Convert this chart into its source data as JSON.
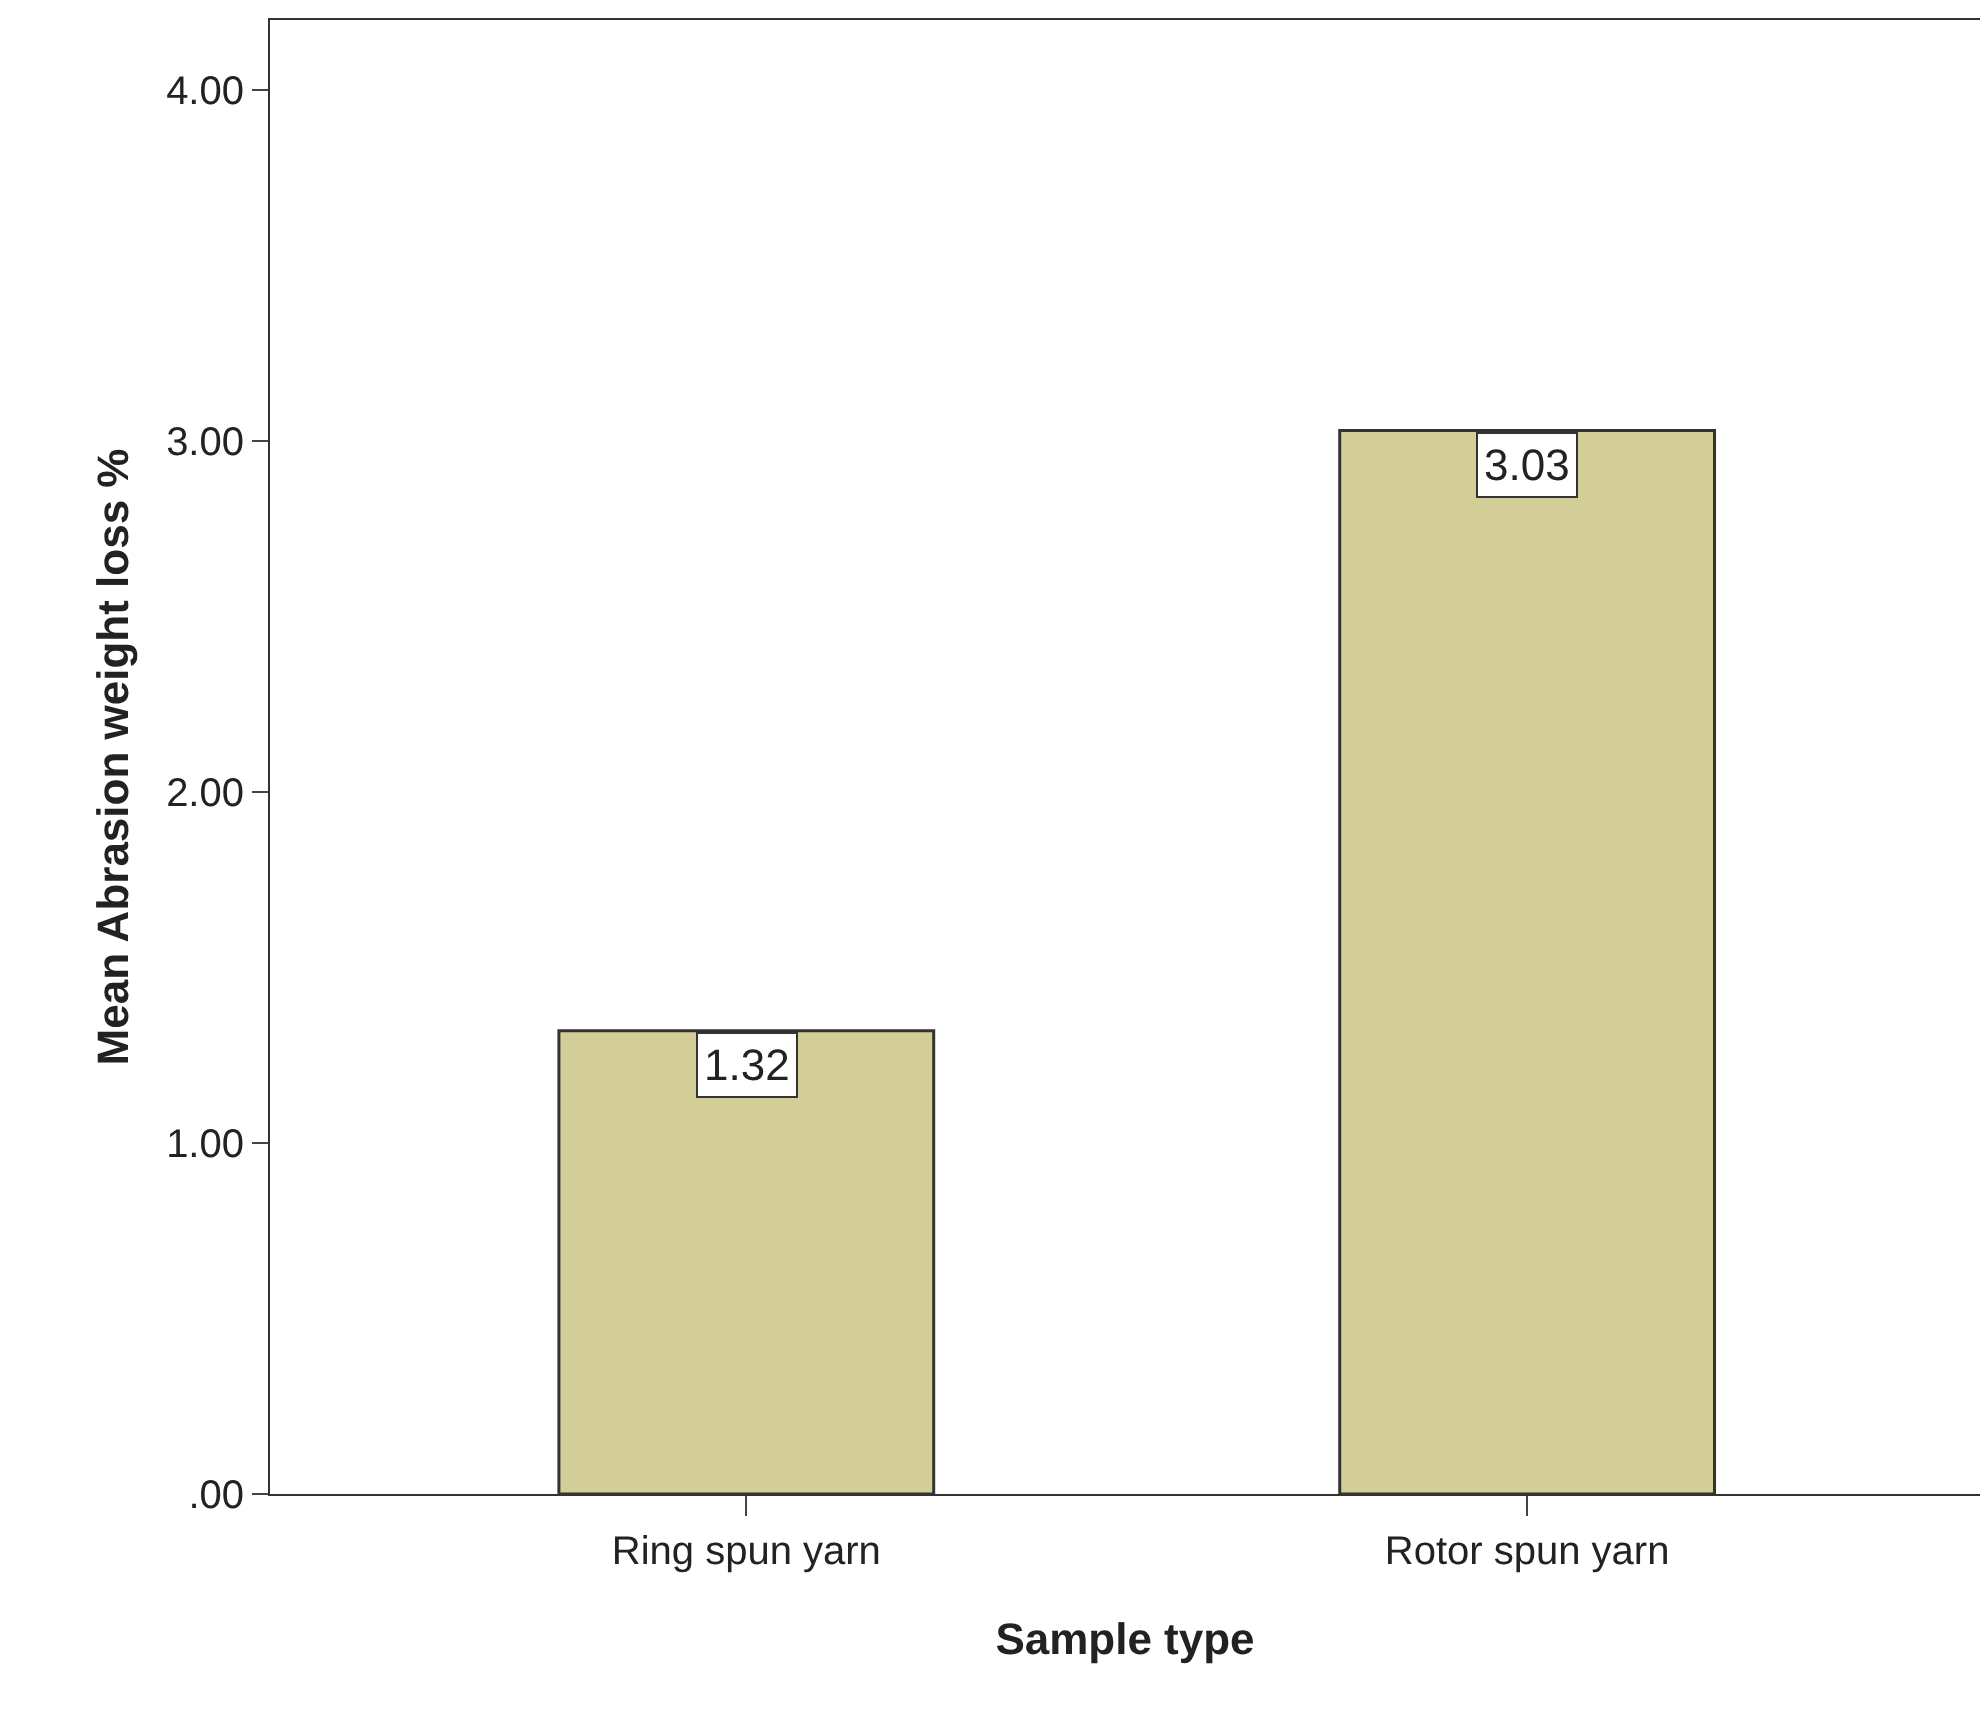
{
  "chart_data": {
    "type": "bar",
    "xlabel": "Sample type",
    "ylabel": "Mean Abrasion weight loss %",
    "categories": [
      "Ring spun yarn",
      "Rotor spun yarn"
    ],
    "values": [
      1.32,
      3.03
    ],
    "color": "#d3ce97",
    "ylim": [
      0,
      4.2
    ],
    "yticks": [
      {
        "value": 0,
        "label": ".00"
      },
      {
        "value": 1,
        "label": "1.00"
      },
      {
        "value": 2,
        "label": "2.00"
      },
      {
        "value": 3,
        "label": "3.00"
      },
      {
        "value": 4,
        "label": "4.00"
      }
    ],
    "data_labels": true,
    "grid": false,
    "legend": false
  }
}
